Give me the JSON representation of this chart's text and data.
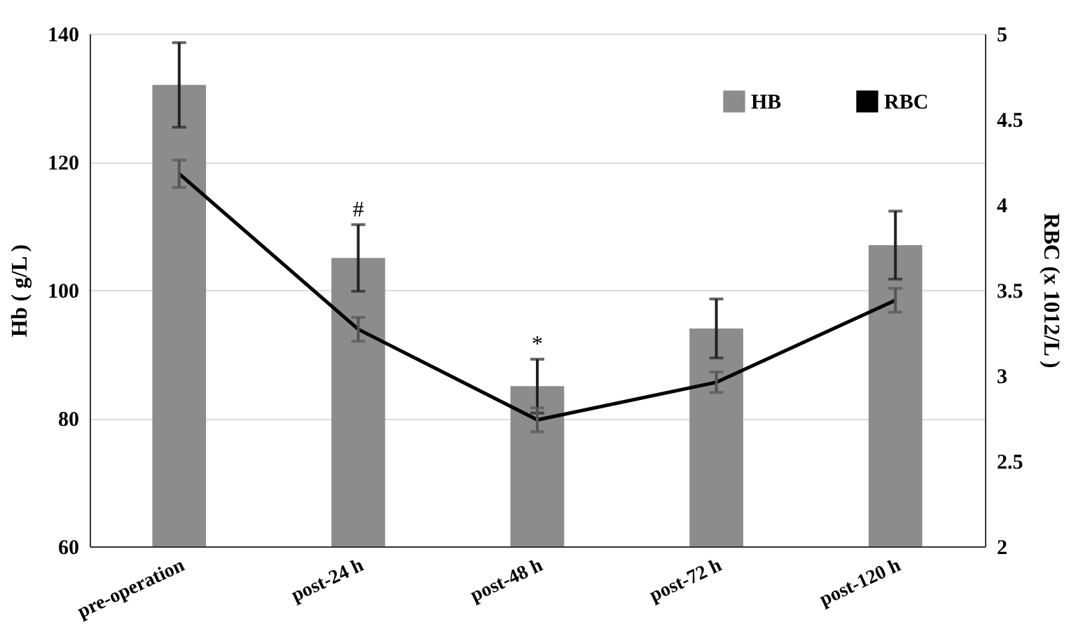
{
  "chart_data": {
    "type": "bar",
    "ylabel": "Hb ( g/L )",
    "y2label": "RBC (x 1012/L )",
    "categories": [
      "pre-operation",
      "post-24 h",
      "post-48 h",
      "post-72 h",
      "post-120 h"
    ],
    "series": [
      {
        "name": "HB",
        "type": "bar",
        "color": "#8c8c8c",
        "values": [
          132,
          105,
          85,
          94,
          107
        ],
        "errors": [
          6.6,
          5.2,
          4.2,
          4.6,
          5.3
        ]
      },
      {
        "name": "RBC",
        "type": "line",
        "axis": "y2",
        "color": "#000000",
        "values": [
          4.18,
          3.27,
          2.74,
          2.96,
          3.44
        ],
        "errors": [
          0.08,
          0.07,
          0.07,
          0.06,
          0.07
        ]
      }
    ],
    "ylim": [
      60,
      140
    ],
    "yticks": [
      60,
      80,
      100,
      120,
      140
    ],
    "y2lim": [
      2,
      5
    ],
    "y2ticks": [
      2,
      2.5,
      3,
      3.5,
      4,
      4.5,
      5
    ],
    "annotations": [
      {
        "text": "#",
        "x": "post-24 h",
        "y": 110.2
      },
      {
        "text": "*",
        "x": "post-48 h",
        "y": 89.2
      }
    ],
    "grid": "y",
    "legend": "top right",
    "marker": "none",
    "line_style": "solid"
  }
}
